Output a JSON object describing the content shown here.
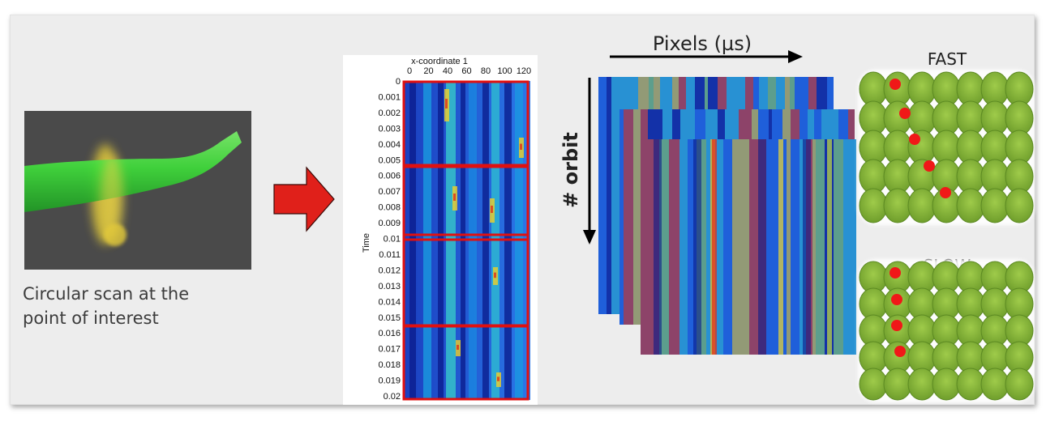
{
  "caption": "Circular scan at the\npoint of interest",
  "kymograph": {
    "x_title": "x-coordinate 1",
    "x_ticks": [
      "0",
      "20",
      "40",
      "60",
      "80",
      "100",
      "120"
    ],
    "y_title": "Time",
    "y_ticks": [
      "0",
      "0.001",
      "0.002",
      "0.003",
      "0.004",
      "0.005",
      "0.006",
      "0.007",
      "0.008",
      "0.009",
      "0.01",
      "0.011",
      "0.012",
      "0.013",
      "0.014",
      "0.015",
      "0.016",
      "0.017",
      "0.018",
      "0.019",
      "0.02"
    ]
  },
  "stack": {
    "x_axis_label": "Pixels (µs)",
    "y_axis_label": "# orbit"
  },
  "patterns": {
    "fast_label": "FAST",
    "slow_label": "SLOW"
  },
  "colors": {
    "arrow_red": "#e0201a",
    "dot_red": "#f01818",
    "cell_green": "#8cbd3c",
    "tube_green": "#3ee03a",
    "ring_yellow": "#d6c43a"
  }
}
